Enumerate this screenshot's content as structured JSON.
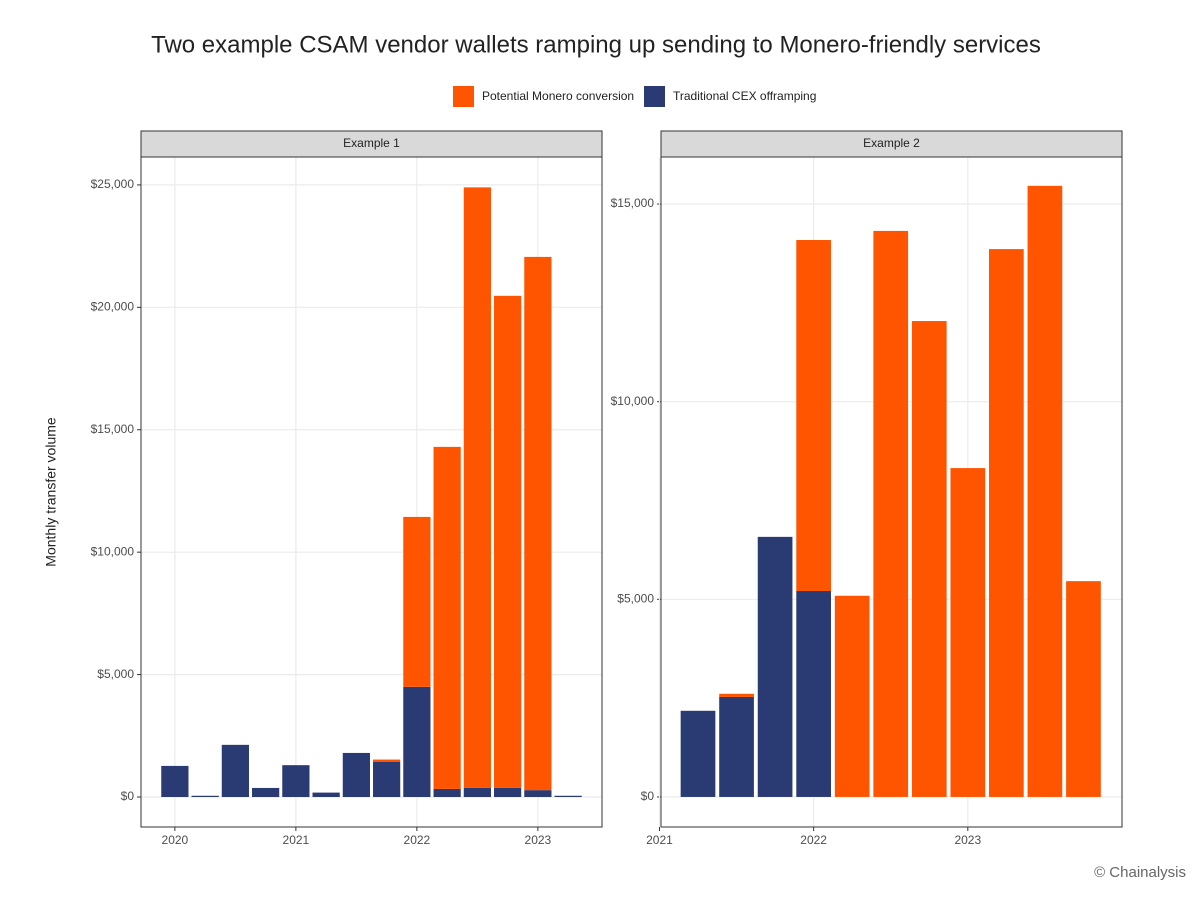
{
  "chart_data": {
    "type": "bar",
    "stacked": true,
    "title": "Two example CSAM vendor wallets ramping up sending to Monero-friendly services",
    "y_label": "Monthly transfer volume",
    "source": "© Chainalysis",
    "grid": true,
    "series": [
      {
        "name": "Potential Monero conversion",
        "color": "#ff5500"
      },
      {
        "name": "Traditional CEX offramping",
        "color": "#2a3a73"
      }
    ],
    "panels": [
      {
        "title": "Example 1",
        "x": [
          2020,
          2020.25,
          2020.5,
          2020.75,
          2021,
          2021.25,
          2021.5,
          2021.75,
          2022,
          2022.25,
          2022.5,
          2022.75,
          2023,
          2023.25
        ],
        "xlim": [
          2019.72,
          2023.53
        ],
        "xticks": [
          2020,
          2021,
          2022,
          2023
        ],
        "ylim": [
          -1225,
          26140
        ],
        "yticks": [
          {
            "value": 0,
            "label": "$0"
          },
          {
            "value": 5000,
            "label": "$5,000"
          },
          {
            "value": 10000,
            "label": "$10,000"
          },
          {
            "value": 15000,
            "label": "$15,000"
          },
          {
            "value": 20000,
            "label": "$20,000"
          },
          {
            "value": 25000,
            "label": "$25,000"
          }
        ],
        "series": [
          {
            "values": [
              0,
              0,
              0,
              0,
              0,
              0,
              0,
              100,
              6940,
              13970,
              24530,
              20100,
              21780,
              0
            ]
          },
          {
            "values": [
              1270,
              50,
              2130,
              370,
              1300,
              180,
              1800,
              1430,
              4500,
              330,
              370,
              370,
              280,
              50
            ]
          }
        ]
      },
      {
        "title": "Example 2",
        "x": [
          2021.25,
          2021.5,
          2021.75,
          2022,
          2022.25,
          2022.5,
          2022.75,
          2023,
          2023.25,
          2023.5,
          2023.75
        ],
        "xlim": [
          2021.01,
          2024.0
        ],
        "xticks": [
          2021,
          2022,
          2023
        ],
        "ylim": [
          -760,
          16190
        ],
        "yticks": [
          {
            "value": 0,
            "label": "$0"
          },
          {
            "value": 5000,
            "label": "$5,000"
          },
          {
            "value": 10000,
            "label": "$10,000"
          },
          {
            "value": 15000,
            "label": "$15,000"
          }
        ],
        "series": [
          {
            "values": [
              0,
              80,
              0,
              8880,
              5090,
              14320,
              12040,
              8320,
              13860,
              15460,
              5460
            ]
          },
          {
            "values": [
              2180,
              2530,
              6580,
              5210,
              0,
              0,
              0,
              0,
              0,
              0,
              0
            ]
          }
        ]
      }
    ]
  }
}
